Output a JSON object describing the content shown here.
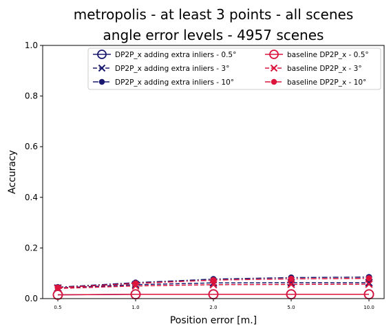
{
  "chart_data": {
    "type": "line",
    "title_line1": "metropolis - at least 3 points - all scenes",
    "title_line2": "angle error levels - 4957 scenes",
    "xlabel": "Position error [m.]",
    "ylabel": "Accuracy",
    "categories": [
      "0.5",
      "1.0",
      "2.0",
      "5.0",
      "10.0"
    ],
    "ylim": [
      0,
      1
    ],
    "yticks": [
      "0.0",
      "0.2",
      "0.4",
      "0.6",
      "0.8",
      "1.0"
    ],
    "legend_position": "top-right",
    "series": [
      {
        "name": "DP2P_x adding extra inliers - 0.5°",
        "color": "#191970",
        "marker": "open-circle",
        "linestyle": "solid",
        "values": [
          0.015,
          0.017,
          0.017,
          0.017,
          0.017
        ]
      },
      {
        "name": "DP2P_x adding extra inliers - 3°",
        "color": "#191970",
        "marker": "x",
        "linestyle": "dashed",
        "values": [
          0.042,
          0.055,
          0.062,
          0.063,
          0.063
        ]
      },
      {
        "name": "DP2P_x adding extra inliers - 10°",
        "color": "#191970",
        "marker": "filled-circle",
        "linestyle": "dashdot",
        "values": [
          0.045,
          0.063,
          0.077,
          0.083,
          0.085
        ]
      },
      {
        "name": "baseline DP2P_x - 0.5°",
        "color": "#dc143c",
        "marker": "open-circle",
        "linestyle": "solid",
        "values": [
          0.015,
          0.017,
          0.017,
          0.017,
          0.017
        ]
      },
      {
        "name": "baseline DP2P_x - 3°",
        "color": "#dc143c",
        "marker": "x",
        "linestyle": "dashed",
        "values": [
          0.04,
          0.05,
          0.055,
          0.056,
          0.057
        ]
      },
      {
        "name": "baseline DP2P_x - 10°",
        "color": "#dc143c",
        "marker": "filled-circle",
        "linestyle": "dashdot",
        "values": [
          0.043,
          0.06,
          0.073,
          0.078,
          0.08
        ]
      }
    ]
  }
}
